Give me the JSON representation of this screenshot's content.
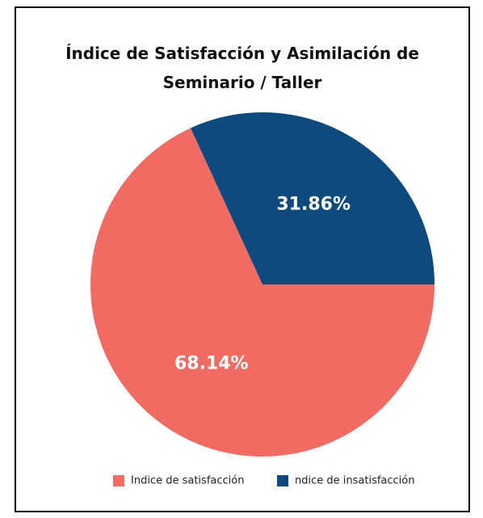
{
  "chart_data": {
    "type": "pie",
    "title": "Índice de Satisfacción y Asimilación de Seminario / Taller",
    "categories": [
      "Indice de satisfacción",
      "ndice de insatisfacción"
    ],
    "values": [
      68.14,
      31.86
    ],
    "value_labels": [
      "68.14%",
      "31.86%"
    ],
    "colors": [
      "#f26b63",
      "#0e4a7e"
    ],
    "legend": "bottom"
  }
}
